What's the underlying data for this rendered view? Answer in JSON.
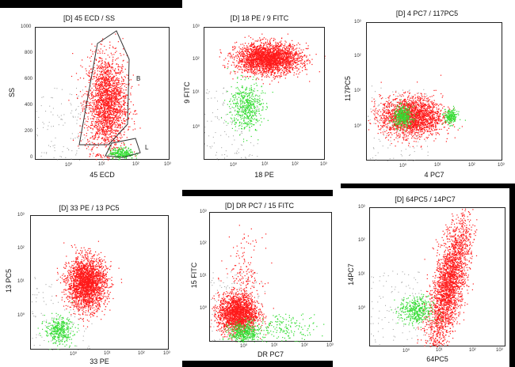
{
  "colors": {
    "population_red": "#ff1a1a",
    "population_green": "#33dd33",
    "debris_gray": "#9a9a9a",
    "frame_black": "#000000"
  },
  "chart_data": [
    {
      "id": "p1",
      "type": "scatter",
      "title": "[D] 45 ECD / SS",
      "xlabel": "45 ECD",
      "ylabel": "SS",
      "x_scale": "log",
      "x_ticks": [
        "10⁰",
        "10¹",
        "10²",
        "10³"
      ],
      "y_scale": "linear",
      "y_ticks": [
        "1000",
        "800",
        "600",
        "400",
        "200",
        "0"
      ],
      "gates": [
        {
          "label": "B"
        },
        {
          "label": "L"
        }
      ],
      "series": [
        {
          "color": "red",
          "clusters": [
            {
              "x_log": 1.1,
              "y": 450,
              "x_spread_log": 0.3,
              "y_spread": 190,
              "points": 2200
            }
          ]
        },
        {
          "color": "green",
          "clusters": [
            {
              "x_log": 1.55,
              "y": 60,
              "x_spread_log": 0.18,
              "y_spread": 22,
              "points": 260
            }
          ]
        }
      ]
    },
    {
      "id": "p2",
      "type": "scatter",
      "title": "[D] 18 PE / 9 FITC",
      "xlabel": "18 PE",
      "ylabel": "9 FITC",
      "x_scale": "log",
      "x_ticks": [
        "10⁰",
        "10¹",
        "10²",
        "10³"
      ],
      "y_scale": "log",
      "y_ticks": [
        "10³",
        "10²",
        "10¹",
        "10⁰"
      ],
      "series": [
        {
          "color": "red",
          "clusters": [
            {
              "x_log": 1.2,
              "y_log": 2.1,
              "x_spread_log": 0.5,
              "y_spread_log": 0.22,
              "points": 2600
            }
          ]
        },
        {
          "color": "green",
          "clusters": [
            {
              "x_log": 0.5,
              "y_log": 0.7,
              "x_spread_log": 0.25,
              "y_spread_log": 0.35,
              "points": 520
            }
          ]
        }
      ]
    },
    {
      "id": "p3",
      "type": "scatter",
      "title": "[D] 4 PC7 / 117PC5",
      "xlabel": "4 PC7",
      "ylabel": "117PC5",
      "x_scale": "log",
      "x_ticks": [
        "10⁰",
        "10¹",
        "10²",
        "10³"
      ],
      "y_scale": "log",
      "y_ticks": [
        "10³",
        "10²",
        "10¹",
        "10⁰"
      ],
      "series": [
        {
          "color": "red",
          "clusters": [
            {
              "x_log": 0.3,
              "y_log": 0.3,
              "x_spread_log": 0.45,
              "y_spread_log": 0.28,
              "points": 2200
            }
          ]
        },
        {
          "color": "green",
          "clusters": [
            {
              "x_log": 0.05,
              "y_log": 0.3,
              "x_spread_log": 0.14,
              "y_spread_log": 0.15,
              "points": 380
            },
            {
              "x_log": 1.45,
              "y_log": 0.3,
              "x_spread_log": 0.1,
              "y_spread_log": 0.11,
              "points": 200
            }
          ]
        }
      ]
    },
    {
      "id": "p4",
      "type": "scatter",
      "title": "[D] 33 PE / 13 PC5",
      "xlabel": "33 PE",
      "ylabel": "13 PC5",
      "x_scale": "log",
      "x_ticks": [
        "10⁰",
        "10¹",
        "10²",
        "10³"
      ],
      "y_scale": "log",
      "y_ticks": [
        "10³",
        "10²",
        "10¹",
        "10⁰"
      ],
      "series": [
        {
          "color": "red",
          "clusters": [
            {
              "x_log": 0.6,
              "y_log": 1.0,
              "x_spread_log": 0.28,
              "y_spread_log": 0.38,
              "points": 2400
            }
          ]
        },
        {
          "color": "green",
          "clusters": [
            {
              "x_log": -0.2,
              "y_log": -0.4,
              "x_spread_log": 0.2,
              "y_spread_log": 0.2,
              "points": 380
            }
          ]
        }
      ]
    },
    {
      "id": "p5",
      "type": "scatter",
      "title": "[D] DR PC7 / 15 FITC",
      "xlabel": "DR PC7",
      "ylabel": "15 FITC",
      "x_scale": "log",
      "x_ticks": [
        "10⁰",
        "10¹",
        "10²",
        "10³"
      ],
      "y_scale": "log",
      "y_ticks": [
        "10³",
        "10²",
        "10¹",
        "10⁰"
      ],
      "series": [
        {
          "color": "red",
          "clusters": [
            {
              "x_log": -0.1,
              "y_log": -0.1,
              "x_spread_log": 0.32,
              "y_spread_log": 0.3,
              "points": 2000
            },
            {
              "x_log": 0.1,
              "y_log": 1.1,
              "x_spread_log": 0.3,
              "y_spread_log": 0.6,
              "points": 180
            }
          ]
        },
        {
          "color": "green",
          "clusters": [
            {
              "x_log": 0.1,
              "y_log": -0.7,
              "x_spread_log": 0.25,
              "y_spread_log": 0.17,
              "points": 450
            },
            {
              "x_log": 1.5,
              "y_log": -0.5,
              "x_spread_log": 0.5,
              "y_spread_log": 0.2,
              "points": 160
            }
          ]
        }
      ]
    },
    {
      "id": "p6",
      "type": "scatter",
      "title": "[D] 64PC5 / 14PC7",
      "xlabel": "64PC5",
      "ylabel": "14PC7",
      "x_scale": "log",
      "x_ticks": [
        "10⁰",
        "10¹",
        "10²",
        "10³"
      ],
      "y_scale": "log",
      "y_ticks": [
        "10³",
        "10²",
        "10¹",
        "10⁰"
      ],
      "series": [
        {
          "color": "red",
          "clusters": [
            {
              "x_log": 1.3,
              "y_log": 0.8,
              "x_spread_log": 0.3,
              "y_spread_log": 0.75,
              "points": 2600,
              "diagonal": true
            }
          ]
        },
        {
          "color": "green",
          "clusters": [
            {
              "x_log": 0.35,
              "y_log": 0.05,
              "x_spread_log": 0.25,
              "y_spread_log": 0.2,
              "points": 420
            }
          ]
        }
      ]
    }
  ]
}
